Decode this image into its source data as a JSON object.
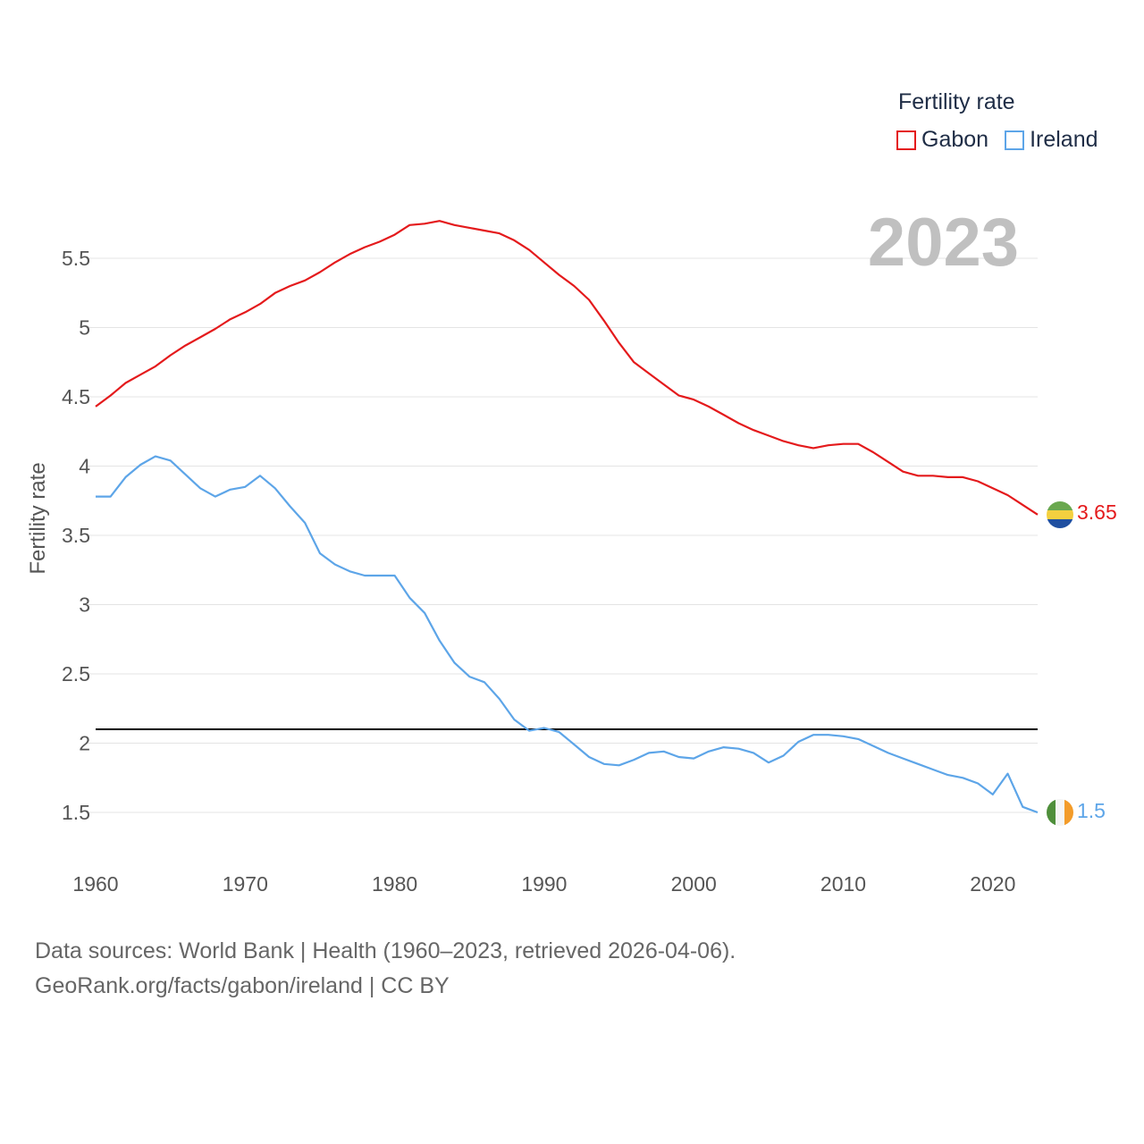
{
  "legend": {
    "title": "Fertility rate",
    "items": [
      {
        "label": "Gabon",
        "color": "#e41a1c"
      },
      {
        "label": "Ireland",
        "color": "#5da5e8"
      }
    ]
  },
  "year_label": "2023",
  "source": {
    "line1": "Data sources: World Bank | Health (1960–2023, retrieved 2026-04-06).",
    "line2": "GeoRank.org/facts/gabon/ireland | CC BY"
  },
  "end_labels": {
    "gabon": "3.65",
    "ireland": "1.5"
  },
  "chart_data": {
    "type": "line",
    "title": "Fertility rate",
    "xlabel": "",
    "ylabel": "Fertility rate",
    "xlim": [
      1960,
      2023
    ],
    "ylim": [
      1.5,
      5.5
    ],
    "x_ticks": [
      1960,
      1970,
      1980,
      1990,
      2000,
      2010,
      2020
    ],
    "y_ticks": [
      1.5,
      2,
      2.5,
      3,
      3.5,
      4,
      4.5,
      5,
      5.5
    ],
    "y_tick_labels": [
      "1.5",
      "2",
      "2.5",
      "3",
      "3.5",
      "4",
      "4.5",
      "5",
      "5.5"
    ],
    "reference_line": {
      "y": 2.1,
      "color": "#000000"
    },
    "x": [
      1960,
      1961,
      1962,
      1963,
      1964,
      1965,
      1966,
      1967,
      1968,
      1969,
      1970,
      1971,
      1972,
      1973,
      1974,
      1975,
      1976,
      1977,
      1978,
      1979,
      1980,
      1981,
      1982,
      1983,
      1984,
      1985,
      1986,
      1987,
      1988,
      1989,
      1990,
      1991,
      1992,
      1993,
      1994,
      1995,
      1996,
      1997,
      1998,
      1999,
      2000,
      2001,
      2002,
      2003,
      2004,
      2005,
      2006,
      2007,
      2008,
      2009,
      2010,
      2011,
      2012,
      2013,
      2014,
      2015,
      2016,
      2017,
      2018,
      2019,
      2020,
      2021,
      2022,
      2023
    ],
    "series": [
      {
        "name": "Gabon",
        "color": "#e41a1c",
        "values": [
          4.43,
          4.51,
          4.6,
          4.66,
          4.72,
          4.8,
          4.87,
          4.93,
          4.99,
          5.06,
          5.11,
          5.17,
          5.25,
          5.3,
          5.34,
          5.4,
          5.47,
          5.53,
          5.58,
          5.62,
          5.67,
          5.74,
          5.75,
          5.77,
          5.74,
          5.72,
          5.7,
          5.68,
          5.63,
          5.56,
          5.47,
          5.38,
          5.3,
          5.2,
          5.05,
          4.89,
          4.75,
          4.67,
          4.59,
          4.51,
          4.48,
          4.43,
          4.37,
          4.31,
          4.26,
          4.22,
          4.18,
          4.15,
          4.13,
          4.15,
          4.16,
          4.16,
          4.1,
          4.03,
          3.96,
          3.93,
          3.93,
          3.92,
          3.92,
          3.89,
          3.84,
          3.79,
          3.72,
          3.65
        ]
      },
      {
        "name": "Ireland",
        "color": "#5da5e8",
        "values": [
          3.78,
          3.78,
          3.92,
          4.01,
          4.07,
          4.04,
          3.94,
          3.84,
          3.78,
          3.83,
          3.85,
          3.93,
          3.84,
          3.71,
          3.59,
          3.37,
          3.29,
          3.24,
          3.21,
          3.21,
          3.21,
          3.05,
          2.94,
          2.74,
          2.58,
          2.48,
          2.44,
          2.32,
          2.17,
          2.09,
          2.11,
          2.08,
          1.99,
          1.9,
          1.85,
          1.84,
          1.88,
          1.93,
          1.94,
          1.9,
          1.89,
          1.94,
          1.97,
          1.96,
          1.93,
          1.86,
          1.91,
          2.01,
          2.06,
          2.06,
          2.05,
          2.03,
          1.98,
          1.93,
          1.89,
          1.85,
          1.81,
          1.77,
          1.75,
          1.71,
          1.63,
          1.78,
          1.54,
          1.5
        ]
      }
    ]
  }
}
